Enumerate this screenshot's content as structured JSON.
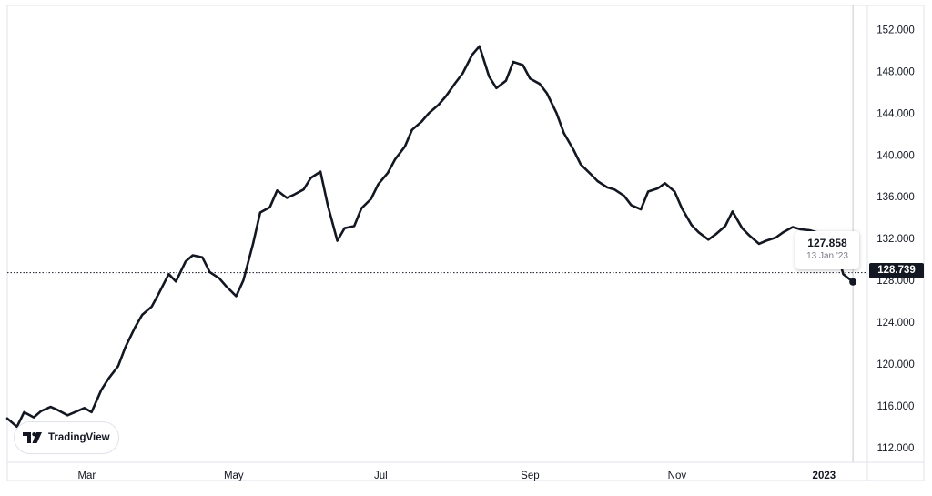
{
  "brand": {
    "name": "TradingView"
  },
  "colors": {
    "line": "#131722",
    "axis_text": "#131722",
    "grid": "#e0e3eb",
    "price_line": "#131722",
    "badge_bg": "#131722",
    "tooltip_date": "#787b86"
  },
  "tooltip": {
    "value": "127.858",
    "date": "13 Jan '23"
  },
  "last_price": "128.739",
  "chart_data": {
    "type": "line",
    "title": "",
    "xlabel": "",
    "ylabel": "",
    "x_tick_labels": [
      "Mar",
      "May",
      "Jul",
      "Sep",
      "Nov",
      "2023"
    ],
    "y_tick_labels": [
      "152.000",
      "148.000",
      "144.000",
      "140.000",
      "136.000",
      "132.000",
      "128.000",
      "124.000",
      "120.000",
      "116.000",
      "112.000"
    ],
    "y_ticks": [
      152,
      148,
      144,
      140,
      136,
      132,
      128,
      124,
      120,
      116,
      112
    ],
    "ylim": [
      110.6,
      154.3
    ],
    "xlim": [
      "2022-01-27",
      "2023-01-19"
    ],
    "grid": false,
    "last_price_value": 128.739,
    "series": [
      {
        "x": [
          "2022-01-27",
          "2022-01-31",
          "2022-02-03",
          "2022-02-07",
          "2022-02-10",
          "2022-02-14",
          "2022-02-17",
          "2022-02-21",
          "2022-02-24",
          "2022-02-28",
          "2022-03-03",
          "2022-03-07",
          "2022-03-10",
          "2022-03-14",
          "2022-03-17",
          "2022-03-21",
          "2022-03-24",
          "2022-03-28",
          "2022-03-31",
          "2022-04-04",
          "2022-04-07",
          "2022-04-11",
          "2022-04-14",
          "2022-04-18",
          "2022-04-21",
          "2022-04-25",
          "2022-04-28",
          "2022-05-02",
          "2022-05-05",
          "2022-05-09",
          "2022-05-12",
          "2022-05-16",
          "2022-05-19",
          "2022-05-23",
          "2022-05-26",
          "2022-05-30",
          "2022-06-02",
          "2022-06-06",
          "2022-06-09",
          "2022-06-13",
          "2022-06-16",
          "2022-06-20",
          "2022-06-23",
          "2022-06-27",
          "2022-06-30",
          "2022-07-04",
          "2022-07-07",
          "2022-07-11",
          "2022-07-14",
          "2022-07-18",
          "2022-07-21",
          "2022-07-25",
          "2022-07-28",
          "2022-08-01",
          "2022-08-04",
          "2022-08-08",
          "2022-08-11",
          "2022-08-15",
          "2022-08-18",
          "2022-08-22",
          "2022-08-25",
          "2022-08-29",
          "2022-09-01",
          "2022-09-05",
          "2022-09-08",
          "2022-09-12",
          "2022-09-15",
          "2022-09-19",
          "2022-09-22",
          "2022-09-26",
          "2022-09-29",
          "2022-10-03",
          "2022-10-06",
          "2022-10-10",
          "2022-10-13",
          "2022-10-17",
          "2022-10-20",
          "2022-10-24",
          "2022-10-27",
          "2022-10-31",
          "2022-11-03",
          "2022-11-07",
          "2022-11-10",
          "2022-11-14",
          "2022-11-17",
          "2022-11-21",
          "2022-11-24",
          "2022-11-28",
          "2022-12-01",
          "2022-12-05",
          "2022-12-08",
          "2022-12-12",
          "2022-12-15",
          "2022-12-19",
          "2022-12-22",
          "2022-12-26",
          "2022-12-29",
          "2023-01-02",
          "2023-01-05",
          "2023-01-09",
          "2023-01-13"
        ],
        "y": [
          114.8,
          114.0,
          115.4,
          114.9,
          115.5,
          115.9,
          115.6,
          115.1,
          115.4,
          115.8,
          115.4,
          117.5,
          118.6,
          119.8,
          121.6,
          123.5,
          124.7,
          125.5,
          126.8,
          128.6,
          127.9,
          129.8,
          130.4,
          130.2,
          128.8,
          128.2,
          127.4,
          126.5,
          128.0,
          131.5,
          134.5,
          135.0,
          136.6,
          135.9,
          136.2,
          136.7,
          137.8,
          138.4,
          135.2,
          131.8,
          133.0,
          133.2,
          134.9,
          135.8,
          137.2,
          138.3,
          139.6,
          140.8,
          142.4,
          143.2,
          144.0,
          144.8,
          145.6,
          146.9,
          147.8,
          149.6,
          150.4,
          147.5,
          146.4,
          147.1,
          148.9,
          148.6,
          147.3,
          146.8,
          145.9,
          144.0,
          142.1,
          140.5,
          139.1,
          138.2,
          137.5,
          136.9,
          136.7,
          136.1,
          135.2,
          134.8,
          136.5,
          136.8,
          137.3,
          136.5,
          134.9,
          133.3,
          132.6,
          131.9,
          132.4,
          133.2,
          134.6,
          133.0,
          132.3,
          131.5,
          131.8,
          132.1,
          132.6,
          133.1,
          132.9,
          132.8,
          132.6,
          132.3,
          131.8,
          128.6,
          127.858
        ]
      }
    ]
  }
}
